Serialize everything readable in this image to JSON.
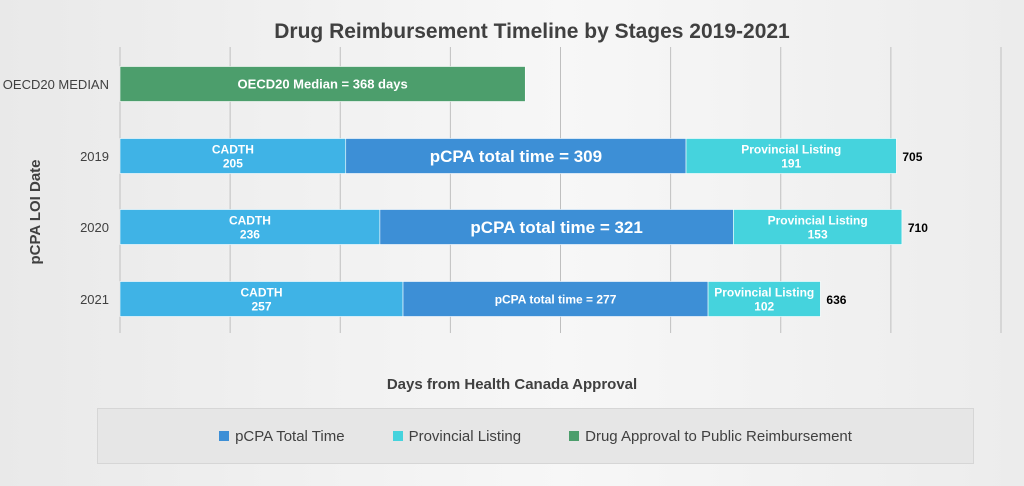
{
  "chart_data": {
    "type": "bar",
    "orientation": "horizontal",
    "stacked": true,
    "title": "Drug Reimbursement Timeline by Stages 2019-2021",
    "xlabel": "Days from Health Canada Approval",
    "ylabel": "pCPA LOI Date",
    "xlim": [
      0,
      800
    ],
    "grid": true,
    "legend_position": "bottom",
    "categories": [
      "OECD20 MEDIAN",
      "2019",
      "2020",
      "2021"
    ],
    "series": [
      {
        "key": "cadth",
        "color": "#3fb3e6",
        "values": [
          null,
          205,
          236,
          257
        ],
        "labels": [
          null,
          "CADTH\n205",
          "CADTH\n236",
          "CADTH\n257"
        ]
      },
      {
        "key": "pcpa",
        "name": "pCPA Total Time",
        "color": "#3d8fd6",
        "values": [
          null,
          309,
          321,
          277
        ],
        "labels": [
          null,
          "pCPA total time = 309",
          "pCPA total time = 321",
          "pCPA total time = 277"
        ]
      },
      {
        "key": "provincial",
        "name": "Provincial Listing",
        "color": "#45d3dd",
        "values": [
          null,
          191,
          153,
          102
        ],
        "labels": [
          null,
          "Provincial Listing\n191",
          "Provincial Listing\n153",
          "Provincial Listing\n102"
        ]
      },
      {
        "key": "oecd",
        "name": "Drug Approval to Public Reimbursement",
        "color": "#4c9e6c",
        "values": [
          368,
          null,
          null,
          null
        ],
        "labels": [
          "OECD20 Median = 368 days",
          null,
          null,
          null
        ]
      }
    ],
    "totals": [
      null,
      705,
      710,
      636
    ],
    "legend": [
      {
        "name": "pCPA Total Time",
        "color": "#3d8fd6"
      },
      {
        "name": "Provincial Listing",
        "color": "#45d3dd"
      },
      {
        "name": "Drug Approval to Public Reimbursement",
        "color": "#4c9e6c"
      }
    ]
  }
}
